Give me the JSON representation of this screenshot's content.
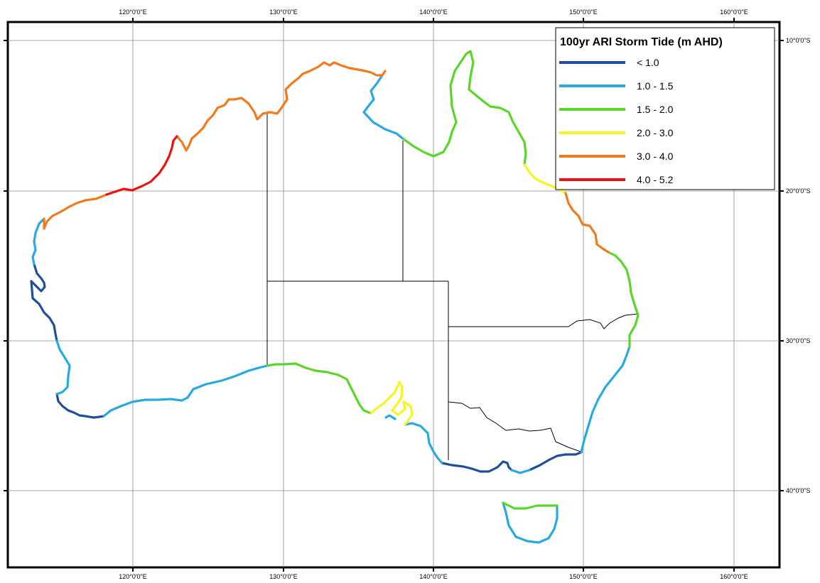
{
  "map": {
    "lon_labels": [
      "120°0'0\"E",
      "130°0'0\"E",
      "140°0'0\"E",
      "150°0'0\"E",
      "160°0'0\"E"
    ],
    "lat_labels": [
      "10°0'0\"S",
      "20°0'0\"S",
      "30°0'0\"S",
      "40°0'0\"S"
    ]
  },
  "legend": {
    "title": "100yr ARI Storm Tide (m AHD)",
    "items": [
      {
        "label": "< 1.0",
        "color": "#1f4e9c"
      },
      {
        "label": "1.0 - 1.5",
        "color": "#29a9e1"
      },
      {
        "label": "1.5 - 2.0",
        "color": "#5ad62a"
      },
      {
        "label": "2.0 - 3.0",
        "color": "#f5f522"
      },
      {
        "label": "3.0 - 4.0",
        "color": "#f07a1e"
      },
      {
        "label": "4.0 - 5.2",
        "color": "#ee1111"
      }
    ]
  }
}
